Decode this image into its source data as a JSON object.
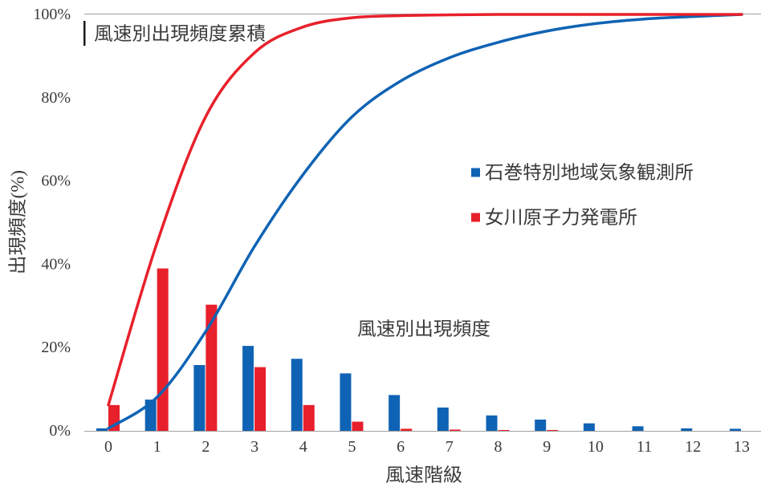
{
  "chart_data": {
    "type": "bar",
    "xlabel": "風速階級",
    "ylabel": "出現頻度(%)",
    "categories": [
      "0",
      "1",
      "2",
      "3",
      "4",
      "5",
      "6",
      "7",
      "8",
      "9",
      "10",
      "11",
      "12",
      "13"
    ],
    "ylim": [
      0,
      100
    ],
    "y_ticks": [
      0,
      20,
      40,
      60,
      80,
      100
    ],
    "y_tick_labels": [
      "0%",
      "20%",
      "40%",
      "60%",
      "80%",
      "100%"
    ],
    "grid": false,
    "legend_position": "right",
    "series": [
      {
        "name": "石巻特別地域気象観測所",
        "color": "#0F63B4",
        "bar_values": [
          0.6,
          7.5,
          15.8,
          20.4,
          17.3,
          13.8,
          8.6,
          5.6,
          3.7,
          2.7,
          1.8,
          1.1,
          0.6,
          0.5
        ],
        "cumulative_line_values": [
          0.6,
          8.1,
          23.9,
          44.3,
          61.6,
          75.4,
          84.0,
          89.6,
          93.3,
          96.0,
          97.8,
          98.9,
          99.5,
          100.0
        ]
      },
      {
        "name": "女川原子力発電所",
        "color": "#E8202B",
        "bar_values": [
          6.2,
          39.0,
          30.3,
          15.3,
          6.2,
          2.2,
          0.5,
          0.3,
          0.2,
          0.2,
          0,
          0,
          0,
          0
        ],
        "cumulative_line_values": [
          6.2,
          45.2,
          75.5,
          90.8,
          97.0,
          99.2,
          99.7,
          99.9,
          100.0,
          100.0,
          100.0,
          100.0,
          100.0,
          100.0
        ]
      }
    ],
    "annotations": [
      "風速別出現頻度累積",
      "風速別出現頻度"
    ]
  }
}
